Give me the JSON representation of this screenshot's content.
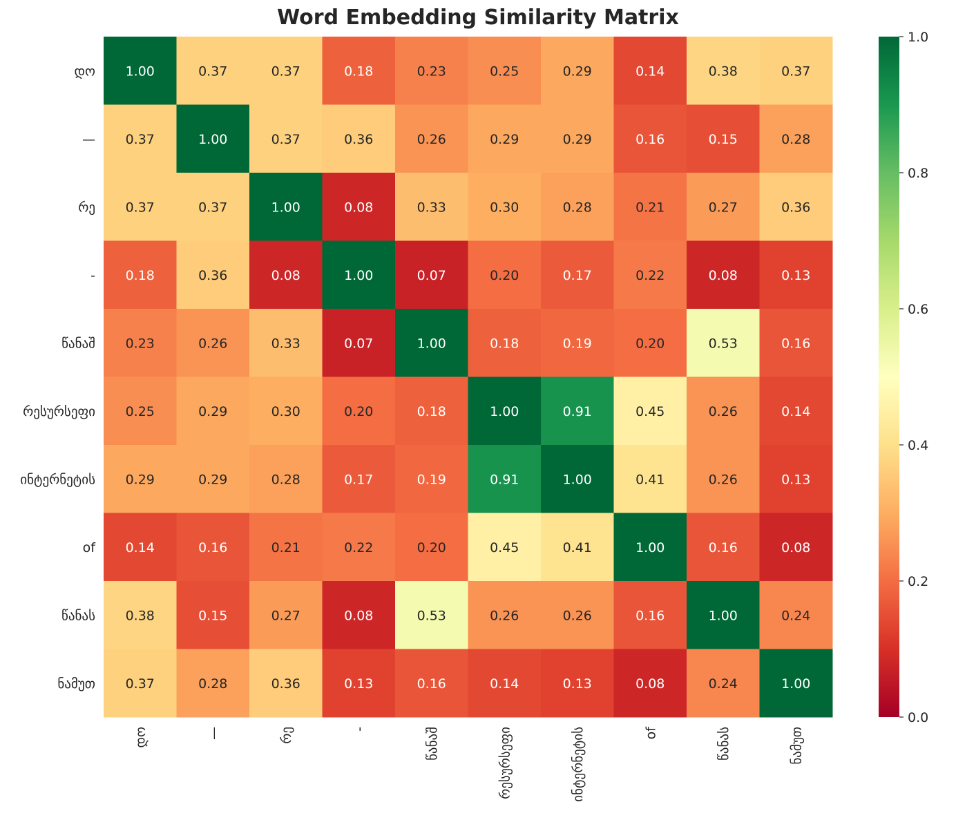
{
  "chart_data": {
    "type": "heatmap",
    "title": "Word Embedding Similarity Matrix",
    "colormap": "RdYlGn",
    "vmin": 0,
    "vmax": 1,
    "labels": [
      "დო",
      "—",
      "რე",
      "-",
      "წანაშ",
      "რესურსეფი",
      "ინტერნეტის",
      "of",
      "წანას",
      "ნამუთ"
    ],
    "colorbar_ticks": [
      "0.0",
      "0.2",
      "0.4",
      "0.6",
      "0.8",
      "1.0"
    ],
    "values": [
      [
        1.0,
        0.37,
        0.37,
        0.18,
        0.23,
        0.25,
        0.29,
        0.14,
        0.38,
        0.37
      ],
      [
        0.37,
        1.0,
        0.37,
        0.36,
        0.26,
        0.29,
        0.29,
        0.16,
        0.15,
        0.28
      ],
      [
        0.37,
        0.37,
        1.0,
        0.08,
        0.33,
        0.3,
        0.28,
        0.21,
        0.27,
        0.36
      ],
      [
        0.18,
        0.36,
        0.08,
        1.0,
        0.07,
        0.2,
        0.17,
        0.22,
        0.08,
        0.13
      ],
      [
        0.23,
        0.26,
        0.33,
        0.07,
        1.0,
        0.18,
        0.19,
        0.2,
        0.53,
        0.16
      ],
      [
        0.25,
        0.29,
        0.3,
        0.2,
        0.18,
        1.0,
        0.91,
        0.45,
        0.26,
        0.14
      ],
      [
        0.29,
        0.29,
        0.28,
        0.17,
        0.19,
        0.91,
        1.0,
        0.41,
        0.26,
        0.13
      ],
      [
        0.14,
        0.16,
        0.21,
        0.22,
        0.2,
        0.45,
        0.41,
        1.0,
        0.16,
        0.08
      ],
      [
        0.38,
        0.15,
        0.27,
        0.08,
        0.53,
        0.26,
        0.26,
        0.16,
        1.0,
        0.24
      ],
      [
        0.37,
        0.28,
        0.36,
        0.13,
        0.16,
        0.14,
        0.13,
        0.08,
        0.24,
        1.0
      ]
    ]
  }
}
